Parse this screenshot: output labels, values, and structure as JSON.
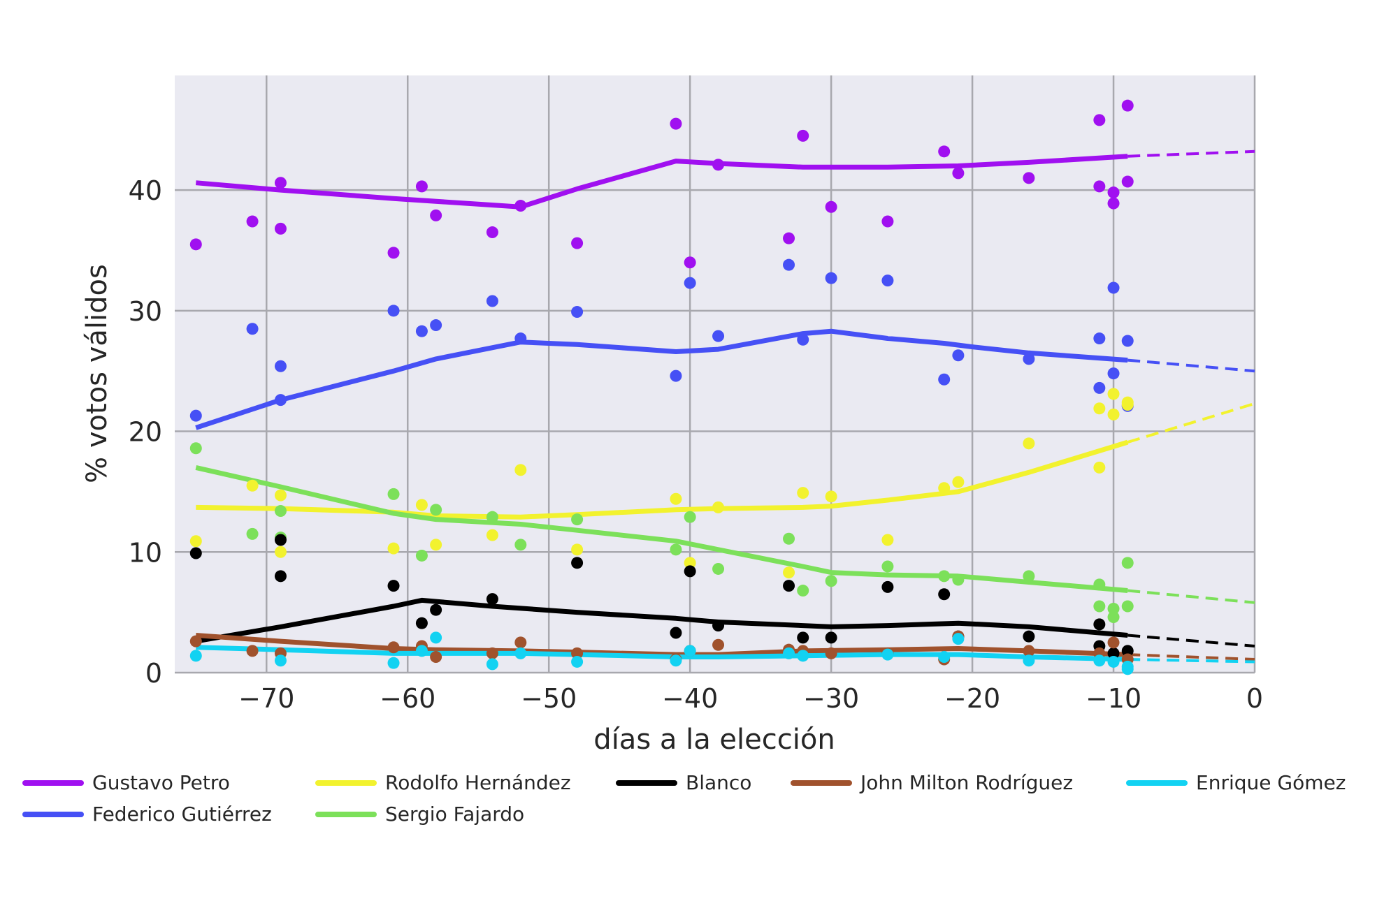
{
  "chart_data": {
    "type": "scatter",
    "title": "",
    "xlabel": "días a la elección",
    "ylabel": "% votos válidos",
    "xlim": [
      -76.5,
      0
    ],
    "ylim": [
      0,
      49.5
    ],
    "xticks": [
      -70,
      -60,
      -50,
      -40,
      -30,
      -20,
      -10,
      0
    ],
    "xtick_labels": [
      "−70",
      "−60",
      "−50",
      "−40",
      "−30",
      "−20",
      "−10",
      "0"
    ],
    "yticks": [
      0,
      10,
      20,
      30,
      40
    ],
    "ytick_labels": [
      "0",
      "10",
      "20",
      "30",
      "40"
    ],
    "grid": true,
    "legend_position": "bottom",
    "series": [
      {
        "name": "Gustavo Petro",
        "color": "#a010f0",
        "points": [
          [
            -75,
            35.5
          ],
          [
            -71,
            37.4
          ],
          [
            -69,
            40.6
          ],
          [
            -69,
            36.8
          ],
          [
            -61,
            34.8
          ],
          [
            -59,
            40.3
          ],
          [
            -58,
            37.9
          ],
          [
            -54,
            36.5
          ],
          [
            -52,
            38.7
          ],
          [
            -48,
            35.6
          ],
          [
            -41,
            45.5
          ],
          [
            -40,
            34.0
          ],
          [
            -38,
            42.1
          ],
          [
            -33,
            36.0
          ],
          [
            -32,
            44.5
          ],
          [
            -30,
            38.6
          ],
          [
            -26,
            37.4
          ],
          [
            -22,
            43.2
          ],
          [
            -21,
            41.4
          ],
          [
            -16,
            41.0
          ],
          [
            -11,
            45.8
          ],
          [
            -11,
            40.3
          ],
          [
            -10,
            39.8
          ],
          [
            -10,
            38.9
          ],
          [
            -9,
            47.0
          ],
          [
            -9,
            40.7
          ]
        ],
        "trend": [
          [
            -75,
            40.6
          ],
          [
            -69,
            40.0
          ],
          [
            -61,
            39.3
          ],
          [
            -52,
            38.6
          ],
          [
            -48,
            40.1
          ],
          [
            -41,
            42.4
          ],
          [
            -38,
            42.2
          ],
          [
            -32,
            41.9
          ],
          [
            -26,
            41.9
          ],
          [
            -21,
            42.0
          ],
          [
            -16,
            42.3
          ],
          [
            -9,
            42.8
          ]
        ],
        "projection": [
          [
            -9,
            42.8
          ],
          [
            0,
            43.2
          ]
        ]
      },
      {
        "name": "Federico Gutiérrez",
        "color": "#4650f5",
        "points": [
          [
            -75,
            21.3
          ],
          [
            -71,
            28.5
          ],
          [
            -69,
            25.4
          ],
          [
            -69,
            22.6
          ],
          [
            -61,
            30.0
          ],
          [
            -59,
            28.3
          ],
          [
            -58,
            28.8
          ],
          [
            -54,
            30.8
          ],
          [
            -52,
            27.7
          ],
          [
            -48,
            29.9
          ],
          [
            -41,
            24.6
          ],
          [
            -40,
            32.3
          ],
          [
            -38,
            27.9
          ],
          [
            -33,
            33.8
          ],
          [
            -32,
            27.6
          ],
          [
            -30,
            32.7
          ],
          [
            -26,
            32.5
          ],
          [
            -22,
            24.3
          ],
          [
            -21,
            26.3
          ],
          [
            -16,
            26.0
          ],
          [
            -11,
            27.7
          ],
          [
            -11,
            23.6
          ],
          [
            -10,
            31.9
          ],
          [
            -10,
            24.8
          ],
          [
            -9,
            27.5
          ],
          [
            -9,
            22.1
          ]
        ],
        "trend": [
          [
            -75,
            20.3
          ],
          [
            -69,
            22.6
          ],
          [
            -61,
            25.0
          ],
          [
            -58,
            26.0
          ],
          [
            -52,
            27.4
          ],
          [
            -48,
            27.2
          ],
          [
            -41,
            26.6
          ],
          [
            -38,
            26.8
          ],
          [
            -32,
            28.1
          ],
          [
            -30,
            28.3
          ],
          [
            -26,
            27.7
          ],
          [
            -22,
            27.3
          ],
          [
            -20,
            27.0
          ],
          [
            -16,
            26.5
          ],
          [
            -9,
            25.9
          ]
        ],
        "projection": [
          [
            -9,
            25.9
          ],
          [
            0,
            25.0
          ]
        ]
      },
      {
        "name": "Rodolfo Hernández",
        "color": "#f2f22e",
        "points": [
          [
            -75,
            10.9
          ],
          [
            -71,
            15.5
          ],
          [
            -69,
            14.7
          ],
          [
            -69,
            10.0
          ],
          [
            -61,
            10.3
          ],
          [
            -59,
            13.9
          ],
          [
            -58,
            10.6
          ],
          [
            -54,
            11.4
          ],
          [
            -52,
            16.8
          ],
          [
            -48,
            10.2
          ],
          [
            -41,
            14.4
          ],
          [
            -40,
            9.1
          ],
          [
            -38,
            13.7
          ],
          [
            -33,
            8.3
          ],
          [
            -32,
            14.9
          ],
          [
            -30,
            14.6
          ],
          [
            -26,
            11.0
          ],
          [
            -22,
            15.3
          ],
          [
            -21,
            15.8
          ],
          [
            -16,
            19.0
          ],
          [
            -11,
            21.9
          ],
          [
            -11,
            17.0
          ],
          [
            -10,
            23.1
          ],
          [
            -10,
            21.4
          ],
          [
            -9,
            22.4
          ],
          [
            -9,
            22.2
          ]
        ],
        "trend": [
          [
            -75,
            13.7
          ],
          [
            -69,
            13.6
          ],
          [
            -61,
            13.3
          ],
          [
            -58,
            13.0
          ],
          [
            -52,
            12.9
          ],
          [
            -48,
            13.1
          ],
          [
            -41,
            13.5
          ],
          [
            -38,
            13.6
          ],
          [
            -32,
            13.7
          ],
          [
            -30,
            13.8
          ],
          [
            -26,
            14.3
          ],
          [
            -21,
            15.0
          ],
          [
            -16,
            16.6
          ],
          [
            -9,
            19.1
          ]
        ],
        "projection": [
          [
            -9,
            19.1
          ],
          [
            0,
            22.3
          ]
        ]
      },
      {
        "name": "Sergio Fajardo",
        "color": "#7ce05a",
        "points": [
          [
            -75,
            18.6
          ],
          [
            -71,
            11.5
          ],
          [
            -69,
            13.4
          ],
          [
            -69,
            11.2
          ],
          [
            -61,
            14.8
          ],
          [
            -59,
            9.7
          ],
          [
            -58,
            13.5
          ],
          [
            -54,
            12.9
          ],
          [
            -52,
            10.6
          ],
          [
            -48,
            12.7
          ],
          [
            -41,
            10.2
          ],
          [
            -40,
            12.9
          ],
          [
            -38,
            8.6
          ],
          [
            -33,
            11.1
          ],
          [
            -32,
            6.8
          ],
          [
            -30,
            7.6
          ],
          [
            -26,
            8.8
          ],
          [
            -22,
            8.0
          ],
          [
            -21,
            7.7
          ],
          [
            -16,
            8.0
          ],
          [
            -11,
            7.3
          ],
          [
            -11,
            5.5
          ],
          [
            -10,
            5.3
          ],
          [
            -10,
            4.6
          ],
          [
            -9,
            9.1
          ],
          [
            -9,
            5.5
          ]
        ],
        "trend": [
          [
            -75,
            17.0
          ],
          [
            -69,
            15.4
          ],
          [
            -61,
            13.2
          ],
          [
            -58,
            12.7
          ],
          [
            -52,
            12.3
          ],
          [
            -48,
            11.8
          ],
          [
            -41,
            10.9
          ],
          [
            -38,
            10.2
          ],
          [
            -32,
            8.8
          ],
          [
            -30,
            8.3
          ],
          [
            -26,
            8.1
          ],
          [
            -21,
            8.0
          ],
          [
            -16,
            7.5
          ],
          [
            -9,
            6.8
          ]
        ],
        "projection": [
          [
            -9,
            6.8
          ],
          [
            0,
            5.8
          ]
        ]
      },
      {
        "name": "Blanco",
        "color": "#000000",
        "points": [
          [
            -75,
            9.9
          ],
          [
            -69,
            11.0
          ],
          [
            -69,
            8.0
          ],
          [
            -61,
            7.2
          ],
          [
            -59,
            4.1
          ],
          [
            -58,
            5.2
          ],
          [
            -54,
            6.1
          ],
          [
            -48,
            9.1
          ],
          [
            -41,
            3.3
          ],
          [
            -40,
            8.4
          ],
          [
            -38,
            3.9
          ],
          [
            -33,
            7.2
          ],
          [
            -32,
            2.9
          ],
          [
            -30,
            2.9
          ],
          [
            -26,
            7.1
          ],
          [
            -22,
            6.5
          ],
          [
            -21,
            3.0
          ],
          [
            -16,
            3.0
          ],
          [
            -11,
            4.0
          ],
          [
            -11,
            2.2
          ],
          [
            -10,
            1.6
          ],
          [
            -9,
            1.8
          ]
        ],
        "trend": [
          [
            -75,
            2.6
          ],
          [
            -69,
            3.8
          ],
          [
            -61,
            5.5
          ],
          [
            -59,
            6.0
          ],
          [
            -54,
            5.5
          ],
          [
            -48,
            5.0
          ],
          [
            -41,
            4.5
          ],
          [
            -38,
            4.2
          ],
          [
            -32,
            3.9
          ],
          [
            -30,
            3.8
          ],
          [
            -26,
            3.9
          ],
          [
            -21,
            4.1
          ],
          [
            -16,
            3.8
          ],
          [
            -9,
            3.1
          ]
        ],
        "projection": [
          [
            -9,
            3.1
          ],
          [
            0,
            2.2
          ]
        ]
      },
      {
        "name": "John Milton Rodríguez",
        "color": "#a0522d",
        "points": [
          [
            -75,
            2.6
          ],
          [
            -71,
            1.8
          ],
          [
            -69,
            1.6
          ],
          [
            -61,
            2.1
          ],
          [
            -59,
            2.2
          ],
          [
            -58,
            1.3
          ],
          [
            -54,
            1.6
          ],
          [
            -52,
            2.5
          ],
          [
            -48,
            1.6
          ],
          [
            -41,
            1.1
          ],
          [
            -40,
            1.8
          ],
          [
            -38,
            2.3
          ],
          [
            -33,
            1.9
          ],
          [
            -32,
            1.8
          ],
          [
            -30,
            1.6
          ],
          [
            -26,
            1.6
          ],
          [
            -22,
            1.1
          ],
          [
            -21,
            3.0
          ],
          [
            -16,
            1.8
          ],
          [
            -11,
            1.6
          ],
          [
            -10,
            2.5
          ],
          [
            -9,
            1.1
          ]
        ],
        "trend": [
          [
            -75,
            3.1
          ],
          [
            -69,
            2.6
          ],
          [
            -61,
            2.0
          ],
          [
            -58,
            1.9
          ],
          [
            -52,
            1.8
          ],
          [
            -48,
            1.7
          ],
          [
            -41,
            1.5
          ],
          [
            -38,
            1.5
          ],
          [
            -32,
            1.8
          ],
          [
            -26,
            1.9
          ],
          [
            -21,
            2.0
          ],
          [
            -16,
            1.8
          ],
          [
            -9,
            1.5
          ]
        ],
        "projection": [
          [
            -9,
            1.5
          ],
          [
            0,
            1.1
          ]
        ]
      },
      {
        "name": "Enrique Gómez",
        "color": "#12d2f2",
        "points": [
          [
            -75,
            1.4
          ],
          [
            -69,
            1.0
          ],
          [
            -61,
            0.8
          ],
          [
            -59,
            1.8
          ],
          [
            -58,
            2.9
          ],
          [
            -54,
            0.7
          ],
          [
            -52,
            1.6
          ],
          [
            -48,
            0.9
          ],
          [
            -41,
            1.0
          ],
          [
            -40,
            1.8
          ],
          [
            -33,
            1.6
          ],
          [
            -32,
            1.4
          ],
          [
            -26,
            1.5
          ],
          [
            -22,
            1.3
          ],
          [
            -21,
            2.8
          ],
          [
            -16,
            1.0
          ],
          [
            -11,
            1.0
          ],
          [
            -10,
            0.9
          ],
          [
            -9,
            0.5
          ],
          [
            -9,
            0.3
          ]
        ],
        "trend": [
          [
            -75,
            2.1
          ],
          [
            -69,
            1.9
          ],
          [
            -61,
            1.6
          ],
          [
            -58,
            1.6
          ],
          [
            -52,
            1.6
          ],
          [
            -48,
            1.5
          ],
          [
            -41,
            1.3
          ],
          [
            -38,
            1.3
          ],
          [
            -32,
            1.4
          ],
          [
            -26,
            1.5
          ],
          [
            -21,
            1.5
          ],
          [
            -16,
            1.3
          ],
          [
            -9,
            1.1
          ]
        ],
        "projection": [
          [
            -9,
            1.1
          ],
          [
            0,
            0.9
          ]
        ]
      }
    ]
  }
}
